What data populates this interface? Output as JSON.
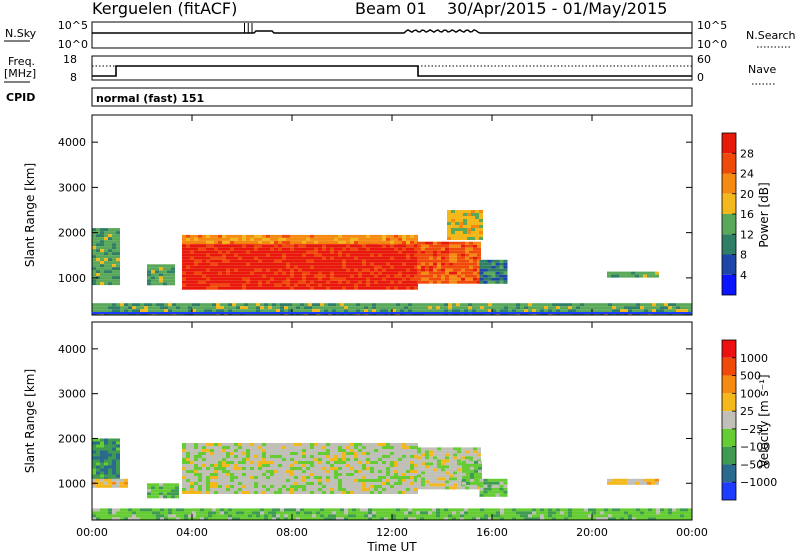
{
  "header": {
    "station": "Kerguelen (fitACF)",
    "beam": "Beam 01",
    "dates": "30/Apr/2015 - 01/May/2015"
  },
  "strips": {
    "nsky_label": "N.Sky",
    "nsky_top": "10^5",
    "nsky_bottom": "10^0",
    "nsearch_label": "N.Search",
    "nsearch_top": "10^5",
    "nsearch_bottom": "10^0",
    "freq_label": "Freq.",
    "freq_unit": "[MHz]",
    "freq_top": "18",
    "freq_bottom": "8",
    "nave_label": "Nave",
    "nave_top": "60",
    "nave_bottom": "0",
    "cpid_label": "CPID",
    "cpid_text": "normal (fast) 151"
  },
  "chart_data": [
    {
      "type": "heatmap",
      "name": "power",
      "ylabel": "Slant Range [km]",
      "yticks": [
        1000,
        2000,
        3000,
        4000
      ],
      "ylim": [
        180,
        4600
      ],
      "xlabel": "Time UT",
      "xticks": [
        "00:00",
        "04:00",
        "08:00",
        "12:00",
        "16:00",
        "20:00",
        "00:00"
      ],
      "xlim_hours": [
        0,
        24
      ],
      "colorbar": {
        "label": "Power [dB]",
        "ticks": [
          "4",
          "8",
          "12",
          "16",
          "20",
          "24",
          "28"
        ],
        "colors": [
          "#0a14ff",
          "#1e46a8",
          "#2f7f66",
          "#5aa85a",
          "#f2b81c",
          "#f58a12",
          "#f04a0a",
          "#e8180a"
        ]
      },
      "regions": [
        {
          "t0": 0.0,
          "t1": 1.0,
          "r0": 900,
          "r1": 2100,
          "level": 3
        },
        {
          "t0": 2.2,
          "t1": 3.2,
          "r0": 900,
          "r1": 1300,
          "level": 3
        },
        {
          "t0": 3.6,
          "t1": 13.0,
          "r0": 800,
          "r1": 1800,
          "level": 7
        },
        {
          "t0": 3.6,
          "t1": 13.0,
          "r0": 1800,
          "r1": 1950,
          "level": 5
        },
        {
          "t0": 13.0,
          "t1": 15.5,
          "r0": 900,
          "r1": 1800,
          "level": 6
        },
        {
          "t0": 14.2,
          "t1": 15.6,
          "r0": 1850,
          "r1": 2500,
          "level": 4
        },
        {
          "t0": 15.5,
          "t1": 16.5,
          "r0": 900,
          "r1": 1400,
          "level": 2
        },
        {
          "t0": 20.6,
          "t1": 22.6,
          "r0": 1020,
          "r1": 1140,
          "level": 3
        },
        {
          "t0": 0.0,
          "t1": 24.0,
          "r0": 200,
          "r1": 440,
          "level": 3
        }
      ]
    },
    {
      "type": "heatmap",
      "name": "velocity",
      "ylabel": "Slant Range [km]",
      "yticks": [
        1000,
        2000,
        3000,
        4000
      ],
      "ylim": [
        180,
        4600
      ],
      "xlabel": "Time UT",
      "xticks": [
        "00:00",
        "04:00",
        "08:00",
        "12:00",
        "16:00",
        "20:00",
        "00:00"
      ],
      "xlim_hours": [
        0,
        24
      ],
      "colorbar": {
        "label": "Velocity [m s⁻¹]",
        "ticks": [
          "1000",
          "500",
          "100",
          "25",
          "−25",
          "−100",
          "−500",
          "−1000"
        ],
        "colors": [
          "#1e3cff",
          "#2a6a8c",
          "#3f9a52",
          "#66cc33",
          "#c0c0b8",
          "#f5b81c",
          "#f58a12",
          "#f04a0a",
          "#ee1010"
        ]
      },
      "regions": [
        {
          "t0": 0.0,
          "t1": 1.0,
          "r0": 1100,
          "r1": 2000,
          "level": 2
        },
        {
          "t0": 0.0,
          "t1": 1.3,
          "r0": 900,
          "r1": 1100,
          "level": 5
        },
        {
          "t0": 2.2,
          "t1": 3.4,
          "r0": 700,
          "r1": 1000,
          "level": 3
        },
        {
          "t0": 3.6,
          "t1": 13.0,
          "r0": 800,
          "r1": 1900,
          "level": 4
        },
        {
          "t0": 13.0,
          "t1": 15.4,
          "r0": 900,
          "r1": 1800,
          "level": 4
        },
        {
          "t0": 14.8,
          "t1": 15.5,
          "r0": 1000,
          "r1": 1500,
          "level": 3
        },
        {
          "t0": 15.5,
          "t1": 16.6,
          "r0": 700,
          "r1": 1100,
          "level": 3
        },
        {
          "t0": 20.6,
          "t1": 22.6,
          "r0": 980,
          "r1": 1100,
          "level": 5
        },
        {
          "t0": 0.0,
          "t1": 24.0,
          "r0": 200,
          "r1": 440,
          "level": 3
        }
      ]
    }
  ]
}
